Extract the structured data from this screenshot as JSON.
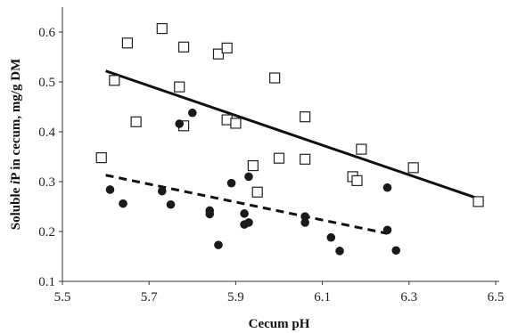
{
  "chart_data": {
    "type": "scatter",
    "title": "",
    "xlabel": "Cecum pH",
    "ylabel_parts": [
      "Soluble ",
      "i",
      "P in cecum, mg/g DM"
    ],
    "xlim": [
      5.5,
      6.5
    ],
    "ylim": [
      0.1,
      0.65
    ],
    "x_ticks": [
      "5.5",
      "5.7",
      "5.9",
      "6.1",
      "6.3",
      "6.5"
    ],
    "y_ticks": [
      "0.1",
      "0.2",
      "0.3",
      "0.4",
      "0.5",
      "0.6"
    ],
    "grid": false,
    "legend": "none",
    "series": [
      {
        "marker": "open-square",
        "color": "#222222",
        "points": [
          [
            5.59,
            0.348
          ],
          [
            5.62,
            0.503
          ],
          [
            5.65,
            0.578
          ],
          [
            5.67,
            0.42
          ],
          [
            5.73,
            0.607
          ],
          [
            5.77,
            0.49
          ],
          [
            5.78,
            0.412
          ],
          [
            5.78,
            0.57
          ],
          [
            5.86,
            0.556
          ],
          [
            5.88,
            0.568
          ],
          [
            5.88,
            0.424
          ],
          [
            5.9,
            0.417
          ],
          [
            5.94,
            0.332
          ],
          [
            5.95,
            0.279
          ],
          [
            5.99,
            0.508
          ],
          [
            6.0,
            0.347
          ],
          [
            6.06,
            0.345
          ],
          [
            6.06,
            0.43
          ],
          [
            6.17,
            0.31
          ],
          [
            6.18,
            0.302
          ],
          [
            6.19,
            0.365
          ],
          [
            6.31,
            0.328
          ],
          [
            6.46,
            0.26
          ]
        ],
        "trend": {
          "style": "solid",
          "x": [
            5.6,
            6.46
          ],
          "y": [
            0.522,
            0.266
          ]
        }
      },
      {
        "marker": "filled-circle",
        "color": "#1a1a1a",
        "points": [
          [
            5.61,
            0.284
          ],
          [
            5.64,
            0.256
          ],
          [
            5.73,
            0.281
          ],
          [
            5.75,
            0.254
          ],
          [
            5.77,
            0.416
          ],
          [
            5.8,
            0.438
          ],
          [
            5.84,
            0.235
          ],
          [
            5.84,
            0.242
          ],
          [
            5.86,
            0.173
          ],
          [
            5.89,
            0.297
          ],
          [
            5.92,
            0.214
          ],
          [
            5.92,
            0.236
          ],
          [
            5.93,
            0.218
          ],
          [
            5.93,
            0.31
          ],
          [
            6.06,
            0.218
          ],
          [
            6.06,
            0.23
          ],
          [
            6.12,
            0.188
          ],
          [
            6.14,
            0.161
          ],
          [
            6.25,
            0.288
          ],
          [
            6.25,
            0.203
          ],
          [
            6.27,
            0.162
          ]
        ],
        "trend": {
          "style": "dashed",
          "x": [
            5.6,
            6.25
          ],
          "y": [
            0.313,
            0.196
          ]
        }
      }
    ]
  }
}
